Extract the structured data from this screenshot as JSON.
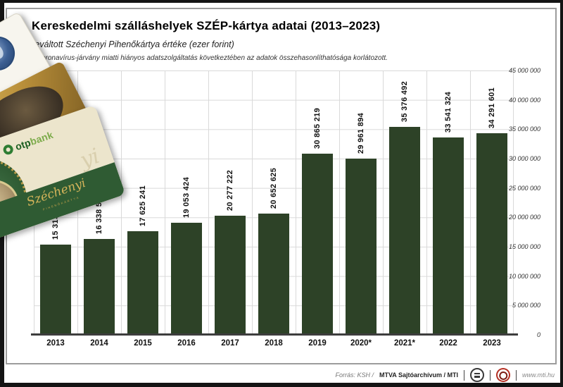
{
  "header": {
    "title": "Kereskedelmi szálláshelyek SZÉP-kártya adatai (2013–2023)",
    "subtitle": "Beváltott Széchenyi Pihenőkártya értéke (ezer forint)",
    "note": "*A koronavírus-járvány miatti hiányos adatszolgáltatás következtében az adatok összehasonlíthatósága korlátozott."
  },
  "chart_data": {
    "type": "bar",
    "title": "Kereskedelmi szálláshelyek SZÉP-kártya adatai (2013–2023)",
    "xlabel": "",
    "ylabel": "ezer forint",
    "categories": [
      "2013",
      "2014",
      "2015",
      "2016",
      "2017",
      "2018",
      "2019",
      "2020*",
      "2021*",
      "2022",
      "2023"
    ],
    "values": [
      15313362,
      16338586,
      17625241,
      19053424,
      20277222,
      20652625,
      30865219,
      29961894,
      35376492,
      33541324,
      34291601
    ],
    "value_labels": [
      "15 313 362",
      "16 338 586",
      "17 625 241",
      "19 053 424",
      "20 277 222",
      "20 652 625",
      "30 865 219",
      "29 961 894",
      "35 376 492",
      "33 541 324",
      "34 291 601"
    ],
    "ylim": [
      0,
      45000000
    ],
    "ytick_step": 5000000,
    "ytick_labels": [
      "45 000 000",
      "40 000 000",
      "35 000 000",
      "30 000 000",
      "25 000 000",
      "20 000 000",
      "15 000 000",
      "10 000 000",
      "5 000 000",
      "0"
    ],
    "grid": true,
    "legend": "none",
    "bar_color": "#2d4227",
    "gridline_color": "#d9d9d9"
  },
  "card": {
    "otp_logo_otp": "otp",
    "otp_logo_bank": "bank",
    "watermark": "yi",
    "signature": "Széchenyi",
    "signature_caps": "PIHENŐKÁRTYA"
  },
  "footer": {
    "source_prefix": "Forrás: KSH /",
    "source_bold": "MTVA Sajtóarchívum / MTI",
    "website": "www.mti.hu"
  }
}
